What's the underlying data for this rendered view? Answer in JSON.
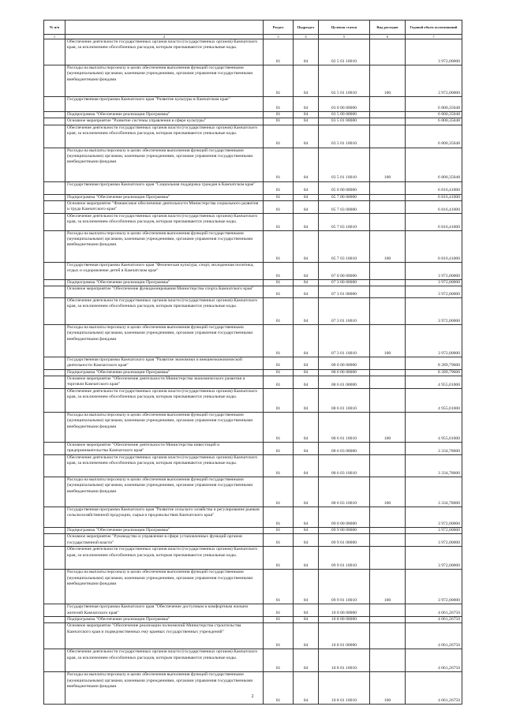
{
  "header": [
    "№ п/п",
    "",
    "Раздел",
    "Подраздел",
    "Целевая статья",
    "Вид расходов",
    "Годовой объем ассигнований"
  ],
  "column_numbers": [
    "1",
    "2",
    "3",
    "4",
    "5",
    "6",
    "7"
  ],
  "rows": [
    {
      "name": "Обеспечение деятельности государственных органов власти (государственных органов) Камчатского края, за исключением обособленных расходов, которым присваиваются уникальные коды.",
      "section": "01",
      "subsection": "04",
      "target": "02 5 01 10010",
      "type": "",
      "amount": "3 972,00000"
    },
    {
      "name": "Расходы на выплаты персоналу в целях обеспечения выполнения функций государственными (муниципальными) органами, казенными учреждениями, органами управления государственными внебюджетными фондами",
      "section": "01",
      "subsection": "04",
      "target": "02 5 01 10010",
      "type": "100",
      "amount": "3 972,00000"
    },
    {
      "name": "Государственная программа Камчатского края \"Развитие культуры в Камчатском крае\"",
      "section": "01",
      "subsection": "04",
      "target": "03 0 00 00000",
      "type": "",
      "amount": "6 800,35048"
    },
    {
      "name": "Подпрограмма \"Обеспечение реализации Программы\"",
      "section": "01",
      "subsection": "04",
      "target": "03 5 00 00000",
      "type": "",
      "amount": "6 800,35048"
    },
    {
      "name": "Основное мероприятие \"Развитие системы управления в сфере культуры\"",
      "section": "01",
      "subsection": "04",
      "target": "03 5 01 00000",
      "type": "",
      "amount": "6 800,35048"
    },
    {
      "name": "Обеспечение деятельности государственных органов власти (государственных органов) Камчатского края, за исключением обособленных расходов, которым присваиваются уникальные коды.",
      "section": "01",
      "subsection": "04",
      "target": "03 5 01 10010",
      "type": "",
      "amount": "6 800,35048"
    },
    {
      "name": "Расходы на выплаты персоналу в целях обеспечения выполнения функций государственными (муниципальными) органами, казенными учреждениями, органами управления государственными внебюджетными фондами",
      "section": "01",
      "subsection": "04",
      "target": "03 5 01 10010",
      "type": "100",
      "amount": "6 800,35048"
    },
    {
      "name": "Государственная программа Камчатского края \"Социальная поддержка граждан в Камчатском крае\"",
      "section": "01",
      "subsection": "04",
      "target": "05 0 00 00000",
      "type": "",
      "amount": "6 816,41000"
    },
    {
      "name": "Подпрограмма \"Обеспечение реализации Программы\"",
      "section": "01",
      "subsection": "04",
      "target": "05 7 00 00000",
      "type": "",
      "amount": "6 816,41000"
    },
    {
      "name": "Основное мероприятие \"Финансовое обеспечение деятельности Министерства социального развития и труда Камчатского края\"",
      "section": "01",
      "subsection": "04",
      "target": "05 7 03 00000",
      "type": "",
      "amount": "6 816,41000"
    },
    {
      "name": "Обеспечение деятельности государственных органов власти (государственных органов) Камчатского края, за исключением обособленных расходов, которым присваиваются уникальные коды.",
      "section": "01",
      "subsection": "04",
      "target": "05 7 03 10010",
      "type": "",
      "amount": "6 816,41000"
    },
    {
      "name": "Расходы на выплаты персоналу в целях обеспечения выполнения функций государственными (муниципальными) органами, казенными учреждениями, органами управления государственными внебюджетными фондами",
      "section": "01",
      "subsection": "04",
      "target": "05 7 03 10010",
      "type": "100",
      "amount": "6 816,41000"
    },
    {
      "name": "Государственная программа Камчатского края \"Физическая культура, спорт, молодежная политика, отдых и оздоровление детей в Камчатском крае\"",
      "section": "01",
      "subsection": "04",
      "target": "07 0 00 00000",
      "type": "",
      "amount": "3 972,00000"
    },
    {
      "name": "Подпрограмма \"Обеспечение реализации Программы\"",
      "section": "01",
      "subsection": "04",
      "target": "07 3 00 00000",
      "type": "",
      "amount": "3 972,00000"
    },
    {
      "name": "Основное мероприятие \"Обеспечение функционирования Министерства спорта Камчатского края\"",
      "section": "01",
      "subsection": "04",
      "target": "07 3 01 00000",
      "type": "",
      "amount": "3 972,00000"
    },
    {
      "name": "Обеспечение деятельности государственных органов власти (государственных органов) Камчатского края, за исключением обособленных расходов, которым присваиваются уникальные коды.",
      "section": "01",
      "subsection": "04",
      "target": "07 3 01 10010",
      "type": "",
      "amount": "3 972,00000"
    },
    {
      "name": "Расходы на выплаты персоналу в целях обеспечения выполнения функций государственными (муниципальными) органами, казенными учреждениями, органами управления государственными внебюджетными фондами",
      "section": "01",
      "subsection": "04",
      "target": "07 3 01 10010",
      "type": "100",
      "amount": "3 972,00000"
    },
    {
      "name": "Государственная программа Камчатского края \"Развитие экономики и внешнеэкономической деятельности Камчатского края\"",
      "section": "01",
      "subsection": "04",
      "target": "08 0 00 00000",
      "type": "",
      "amount": "8 289,79600"
    },
    {
      "name": "Подпрограмма \"Обеспечение реализации Программы\"",
      "section": "01",
      "subsection": "04",
      "target": "08 6 00 00000",
      "type": "",
      "amount": "8 289,79600"
    },
    {
      "name": "Основное мероприятие \"Обеспечение деятельности Министерства экономического развития и торговли Камчатского края\"",
      "section": "01",
      "subsection": "04",
      "target": "08 6 01 00000",
      "type": "",
      "amount": "4 955,01000"
    },
    {
      "name": "Обеспечение деятельности государственных органов власти (государственных органов) Камчатского края, за исключением обособленных расходов, которым присваиваются уникальные коды.",
      "section": "01",
      "subsection": "04",
      "target": "08 6 01 10010",
      "type": "",
      "amount": "4 955,01000"
    },
    {
      "name": "Расходы на выплаты персоналу в целях обеспечения выполнения функций государственными (муниципальными) органами, казенными учреждениями, органами управления государственными внебюджетными фондами",
      "section": "01",
      "subsection": "04",
      "target": "08 6 01 10010",
      "type": "100",
      "amount": "4 955,01000"
    },
    {
      "name": "Основное мероприятие \"Обеспечение деятельности Министерства инвестиций и предпринимательства Камчатского края\"",
      "section": "01",
      "subsection": "04",
      "target": "08 6 03 00000",
      "type": "",
      "amount": "3 334,78600"
    },
    {
      "name": "Обеспечение деятельности государственных органов власти (государственных органов) Камчатского края, за исключением обособленных расходов, которым присваиваются уникальные коды.",
      "section": "01",
      "subsection": "04",
      "target": "08 6 03 10010",
      "type": "",
      "amount": "3 334,78600"
    },
    {
      "name": "Расходы на выплаты персоналу в целях обеспечения выполнения функций государственными (муниципальными) органами, казенными учреждениями, органами управления государственными внебюджетными фондами",
      "section": "01",
      "subsection": "04",
      "target": "08 6 03 10010",
      "type": "100",
      "amount": "3 334,78600"
    },
    {
      "name": "Государственная программа Камчатского края \"Развитие сельского хозяйства и регулирование рынков сельскохозяйственной продукции, сырья и продовольствия Камчатского края\"",
      "section": "01",
      "subsection": "04",
      "target": "09 0 00 00000",
      "type": "",
      "amount": "3 972,00000"
    },
    {
      "name": "Подпрограмма \"Обеспечение реализации Программы\"",
      "section": "01",
      "subsection": "04",
      "target": "09 9 00 00000",
      "type": "",
      "amount": "3 972,00000"
    },
    {
      "name": "Основное мероприятие \"Руководство и управление в сфере установленных функций органов государственной власти\"",
      "section": "01",
      "subsection": "04",
      "target": "09 9 01 00000",
      "type": "",
      "amount": "3 972,00000"
    },
    {
      "name": "Обеспечение деятельности государственных органов власти (государственных органов) Камчатского края, за исключением обособленных расходов, которым присваиваются уникальные коды.",
      "section": "01",
      "subsection": "04",
      "target": "09 9 01 10010",
      "type": "",
      "amount": "3 972,00000"
    },
    {
      "name": "Расходы на выплаты персоналу в целях обеспечения выполнения функций государственными (муниципальными) органами, казенными учреждениями, органами управления государственными внебюджетными фондами",
      "section": "01",
      "subsection": "04",
      "target": "09 9 01 10010",
      "type": "100",
      "amount": "3 972,00000"
    },
    {
      "name": "Государственная программа Камчатского края \"Обеспечение доступным и комфортным жильем жителей Камчатского края\"",
      "section": "01",
      "subsection": "04",
      "target": "10 0 00 00000",
      "type": "",
      "amount": "4 061,26750"
    },
    {
      "name": "Подпрограмма \"Обеспечение реализации Программы\"",
      "section": "01",
      "subsection": "04",
      "target": "10 8 00 00000",
      "type": "",
      "amount": "4 061,26750"
    },
    {
      "name": "Основное мероприятие \"Обеспечение реализации полномочий Министерства строительства Камчатского края и подведомственных ему краевых государственных учреждений\"",
      "section": "01",
      "subsection": "04",
      "target": "10 8 01 00000",
      "type": "",
      "amount": "4 061,26750"
    },
    {
      "name": "Обеспечение деятельности государственных органов власти (государственных органов) Камчатского края, за исключением обособленных расходов, которым присваиваются уникальные коды.",
      "section": "01",
      "subsection": "04",
      "target": "10 8 01 10010",
      "type": "",
      "amount": "4 061,26750"
    },
    {
      "name": "Расходы на выплаты персоналу в целях обеспечения выполнения функций государственными (муниципальными) органами, казенными учреждениями, органами управления государственными внебюджетными фондами",
      "section": "01",
      "subsection": "04",
      "target": "10 8 01 10010",
      "type": "100",
      "amount": "4 061,26750"
    }
  ],
  "page_number": "2"
}
